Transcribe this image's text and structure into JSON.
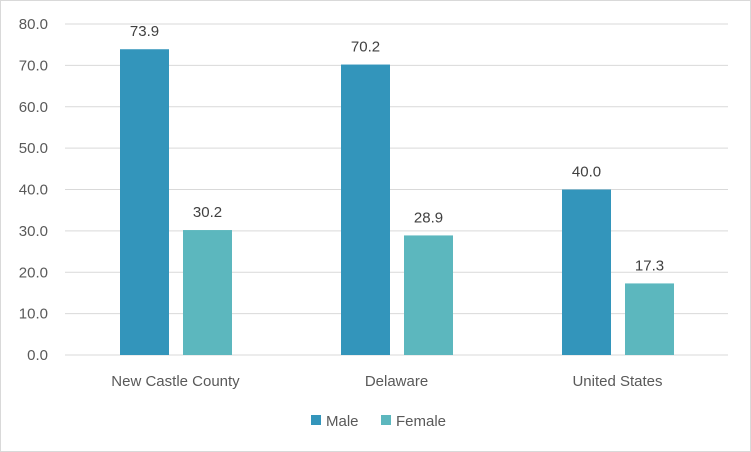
{
  "chart_data": {
    "type": "bar",
    "title": "",
    "xlabel": "",
    "ylabel": "",
    "categories": [
      "New Castle County",
      "Delaware",
      "United States"
    ],
    "series": [
      {
        "name": "Male",
        "values": [
          73.9,
          70.2,
          40.0
        ],
        "labels": [
          "73.9",
          "70.2",
          "40.0"
        ],
        "color": "#3395bb"
      },
      {
        "name": "Female",
        "values": [
          30.2,
          28.9,
          17.3
        ],
        "labels": [
          "30.2",
          "28.9",
          "17.3"
        ],
        "color": "#5cb7be"
      }
    ],
    "ylim": [
      0,
      80
    ],
    "yticks": [
      0,
      10,
      20,
      30,
      40,
      50,
      60,
      70,
      80
    ],
    "ytick_labels": [
      "0.0",
      "10.0",
      "20.0",
      "30.0",
      "40.0",
      "50.0",
      "60.0",
      "70.0",
      "80.0"
    ],
    "grid": true,
    "gridline_color": "#d9d9d9",
    "legend_position": "bottom"
  }
}
